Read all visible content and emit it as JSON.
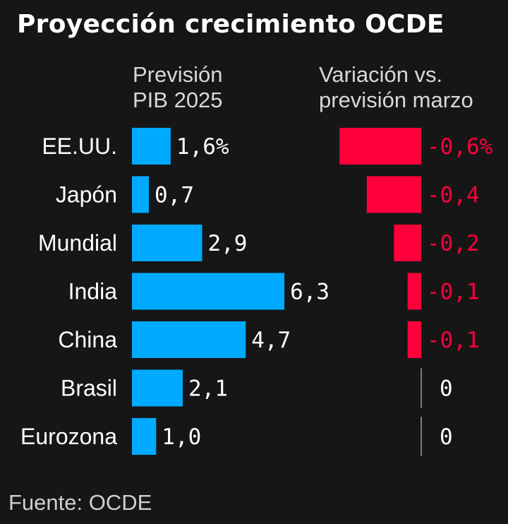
{
  "title": "Proyección crecimiento OCDE",
  "headers": {
    "gdp_line1": "Previsión",
    "gdp_line2": "PIB 2025",
    "chg_line1": "Variación vs.",
    "chg_line2": "previsión marzo"
  },
  "source": "Fuente: OCDE",
  "colors": {
    "background": "#161616",
    "gdp_bar": "#00aaff",
    "change_bar": "#ff003c",
    "text": "#ffffff"
  },
  "chart_data": [
    {
      "type": "bar",
      "orientation": "horizontal",
      "categories": [
        "EE.UU.",
        "Japón",
        "Mundial",
        "India",
        "China",
        "Brasil",
        "Eurozona"
      ],
      "values": [
        1.6,
        0.7,
        2.9,
        6.3,
        4.7,
        2.1,
        1.0
      ],
      "value_labels": [
        "1,6%",
        "0,7",
        "2,9",
        "6,3",
        "4,7",
        "2,1",
        "1,0"
      ]
    },
    {
      "type": "bar",
      "orientation": "horizontal",
      "categories": [
        "EE.UU.",
        "Japón",
        "Mundial",
        "India",
        "China",
        "Brasil",
        "Eurozona"
      ],
      "values": [
        -0.6,
        -0.4,
        -0.2,
        -0.1,
        -0.1,
        0,
        0
      ],
      "value_labels": [
        "-0,6%",
        "-0,4",
        "-0,2",
        "-0,1",
        "-0,1",
        "0",
        "0"
      ]
    }
  ]
}
